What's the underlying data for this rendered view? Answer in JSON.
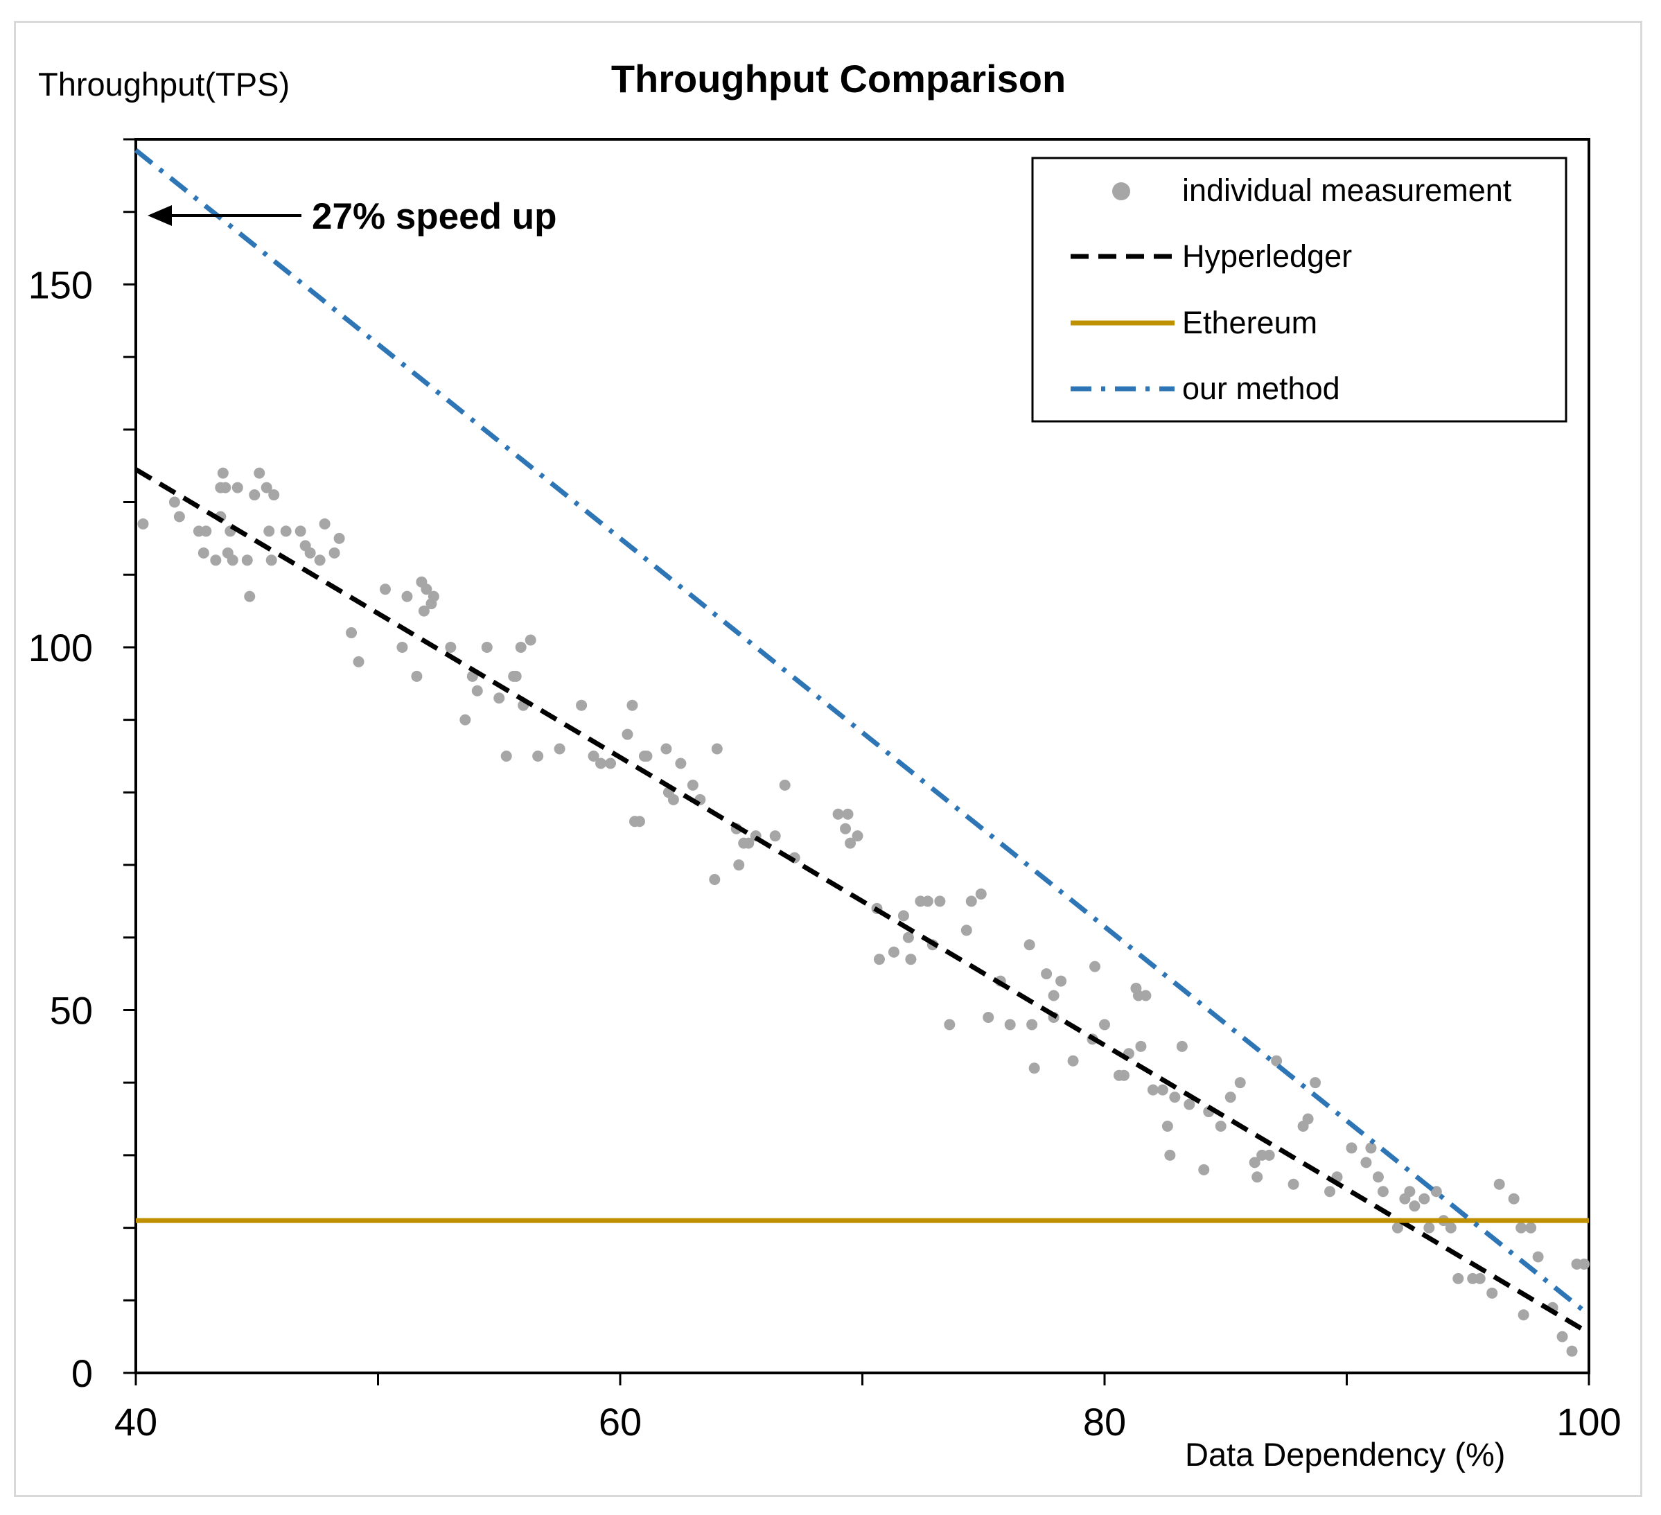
{
  "chart_data": {
    "type": "line",
    "title": "Throughput Comparison",
    "ylabel": "Throughput(TPS)",
    "xlabel": "Data Dependency (%)",
    "xlim": [
      40,
      100
    ],
    "ylim": [
      0,
      170
    ],
    "x_ticks": [
      40,
      60,
      80,
      100
    ],
    "y_ticks": [
      0,
      50,
      100,
      150
    ],
    "annotation": {
      "text": "27% speed up",
      "x": 40,
      "y": 169
    },
    "legend_position": "top-right",
    "series": [
      {
        "name": "individual measurement",
        "kind": "scatter",
        "color": "#a6a6a6",
        "points": [
          [
            40.3,
            117
          ],
          [
            41.6,
            120
          ],
          [
            41.8,
            118
          ],
          [
            42.6,
            116
          ],
          [
            42.9,
            116
          ],
          [
            42.8,
            113
          ],
          [
            43.3,
            112
          ],
          [
            43.5,
            118
          ],
          [
            43.6,
            124
          ],
          [
            43.5,
            122
          ],
          [
            43.7,
            122
          ],
          [
            43.8,
            113
          ],
          [
            43.9,
            116
          ],
          [
            44.0,
            112
          ],
          [
            44.2,
            122
          ],
          [
            44.6,
            112
          ],
          [
            44.7,
            107
          ],
          [
            44.9,
            121
          ],
          [
            45.1,
            124
          ],
          [
            45.4,
            122
          ],
          [
            45.5,
            116
          ],
          [
            45.6,
            112
          ],
          [
            45.7,
            121
          ],
          [
            46.2,
            116
          ],
          [
            46.8,
            116
          ],
          [
            47.0,
            114
          ],
          [
            47.2,
            113
          ],
          [
            47.6,
            112
          ],
          [
            47.8,
            117
          ],
          [
            48.2,
            113
          ],
          [
            48.4,
            115
          ],
          [
            48.9,
            102
          ],
          [
            49.2,
            98
          ],
          [
            50.3,
            108
          ],
          [
            51.0,
            100
          ],
          [
            51.2,
            107
          ],
          [
            51.6,
            96
          ],
          [
            51.8,
            109
          ],
          [
            51.9,
            105
          ],
          [
            52.0,
            108
          ],
          [
            52.2,
            106
          ],
          [
            52.3,
            107
          ],
          [
            53.0,
            100
          ],
          [
            53.6,
            90
          ],
          [
            53.9,
            96
          ],
          [
            54.1,
            94
          ],
          [
            54.5,
            100
          ],
          [
            55.0,
            93
          ],
          [
            55.3,
            85
          ],
          [
            55.6,
            96
          ],
          [
            55.7,
            96
          ],
          [
            55.9,
            100
          ],
          [
            56.0,
            92
          ],
          [
            56.3,
            101
          ],
          [
            56.6,
            85
          ],
          [
            57.5,
            86
          ],
          [
            58.4,
            92
          ],
          [
            58.9,
            85
          ],
          [
            59.2,
            84
          ],
          [
            59.6,
            84
          ],
          [
            60.3,
            88
          ],
          [
            60.5,
            92
          ],
          [
            60.6,
            76
          ],
          [
            60.8,
            76
          ],
          [
            61.0,
            85
          ],
          [
            61.1,
            85
          ],
          [
            61.9,
            86
          ],
          [
            62.0,
            80
          ],
          [
            62.2,
            79
          ],
          [
            62.5,
            84
          ],
          [
            63.0,
            81
          ],
          [
            63.3,
            79
          ],
          [
            63.9,
            68
          ],
          [
            64.0,
            86
          ],
          [
            64.8,
            75
          ],
          [
            64.9,
            70
          ],
          [
            65.1,
            73
          ],
          [
            65.3,
            73
          ],
          [
            65.6,
            74
          ],
          [
            66.4,
            74
          ],
          [
            66.8,
            81
          ],
          [
            67.2,
            71
          ],
          [
            69.0,
            77
          ],
          [
            69.3,
            75
          ],
          [
            69.4,
            77
          ],
          [
            69.5,
            73
          ],
          [
            69.8,
            74
          ],
          [
            70.6,
            64
          ],
          [
            70.7,
            57
          ],
          [
            71.3,
            58
          ],
          [
            71.7,
            63
          ],
          [
            71.9,
            60
          ],
          [
            72.0,
            57
          ],
          [
            72.4,
            65
          ],
          [
            72.7,
            65
          ],
          [
            72.9,
            59
          ],
          [
            73.2,
            65
          ],
          [
            73.6,
            48
          ],
          [
            74.3,
            61
          ],
          [
            74.5,
            65
          ],
          [
            74.9,
            66
          ],
          [
            75.2,
            49
          ],
          [
            75.7,
            54
          ],
          [
            76.1,
            48
          ],
          [
            76.9,
            59
          ],
          [
            77.0,
            48
          ],
          [
            77.1,
            42
          ],
          [
            77.6,
            55
          ],
          [
            77.9,
            52
          ],
          [
            77.9,
            49
          ],
          [
            78.2,
            54
          ],
          [
            78.7,
            43
          ],
          [
            79.5,
            46
          ],
          [
            79.6,
            56
          ],
          [
            80.0,
            48
          ],
          [
            80.6,
            41
          ],
          [
            80.8,
            41
          ],
          [
            81.0,
            44
          ],
          [
            81.3,
            53
          ],
          [
            81.4,
            52
          ],
          [
            81.5,
            45
          ],
          [
            81.7,
            52
          ],
          [
            82.0,
            39
          ],
          [
            82.4,
            39
          ],
          [
            82.6,
            34
          ],
          [
            82.7,
            30
          ],
          [
            82.9,
            38
          ],
          [
            83.2,
            45
          ],
          [
            83.5,
            37
          ],
          [
            84.1,
            28
          ],
          [
            84.3,
            36
          ],
          [
            84.8,
            34
          ],
          [
            85.2,
            38
          ],
          [
            85.6,
            40
          ],
          [
            86.2,
            29
          ],
          [
            86.3,
            27
          ],
          [
            86.5,
            30
          ],
          [
            86.8,
            30
          ],
          [
            87.1,
            43
          ],
          [
            87.8,
            26
          ],
          [
            88.2,
            34
          ],
          [
            88.4,
            35
          ],
          [
            88.7,
            40
          ],
          [
            89.3,
            25
          ],
          [
            89.6,
            27
          ],
          [
            90.2,
            31
          ],
          [
            90.8,
            29
          ],
          [
            91.0,
            31
          ],
          [
            91.3,
            27
          ],
          [
            91.5,
            25
          ],
          [
            92.1,
            20
          ],
          [
            92.4,
            24
          ],
          [
            92.6,
            25
          ],
          [
            92.8,
            23
          ],
          [
            93.2,
            24
          ],
          [
            93.4,
            20
          ],
          [
            93.7,
            25
          ],
          [
            94.0,
            21
          ],
          [
            94.3,
            20
          ],
          [
            94.6,
            13
          ],
          [
            95.2,
            13
          ],
          [
            95.5,
            13
          ],
          [
            96.0,
            11
          ],
          [
            96.3,
            26
          ],
          [
            96.9,
            24
          ],
          [
            97.2,
            20
          ],
          [
            97.3,
            8
          ],
          [
            97.6,
            20
          ],
          [
            97.9,
            16
          ],
          [
            98.5,
            9
          ],
          [
            98.9,
            5
          ],
          [
            99.3,
            3
          ],
          [
            99.5,
            15
          ],
          [
            99.8,
            15
          ]
        ]
      },
      {
        "name": "Hyperledger",
        "kind": "line",
        "style": "dashed",
        "color": "#000000",
        "x": [
          40,
          100
        ],
        "y": [
          124.5,
          5.5
        ]
      },
      {
        "name": "Ethereum",
        "kind": "line",
        "style": "solid",
        "color": "#bf9000",
        "x": [
          40,
          100
        ],
        "y": [
          21,
          21
        ]
      },
      {
        "name": "our method",
        "kind": "line",
        "style": "dash-dot",
        "color": "#2e75b6",
        "x": [
          40,
          100
        ],
        "y": [
          168.5,
          8
        ]
      }
    ]
  }
}
